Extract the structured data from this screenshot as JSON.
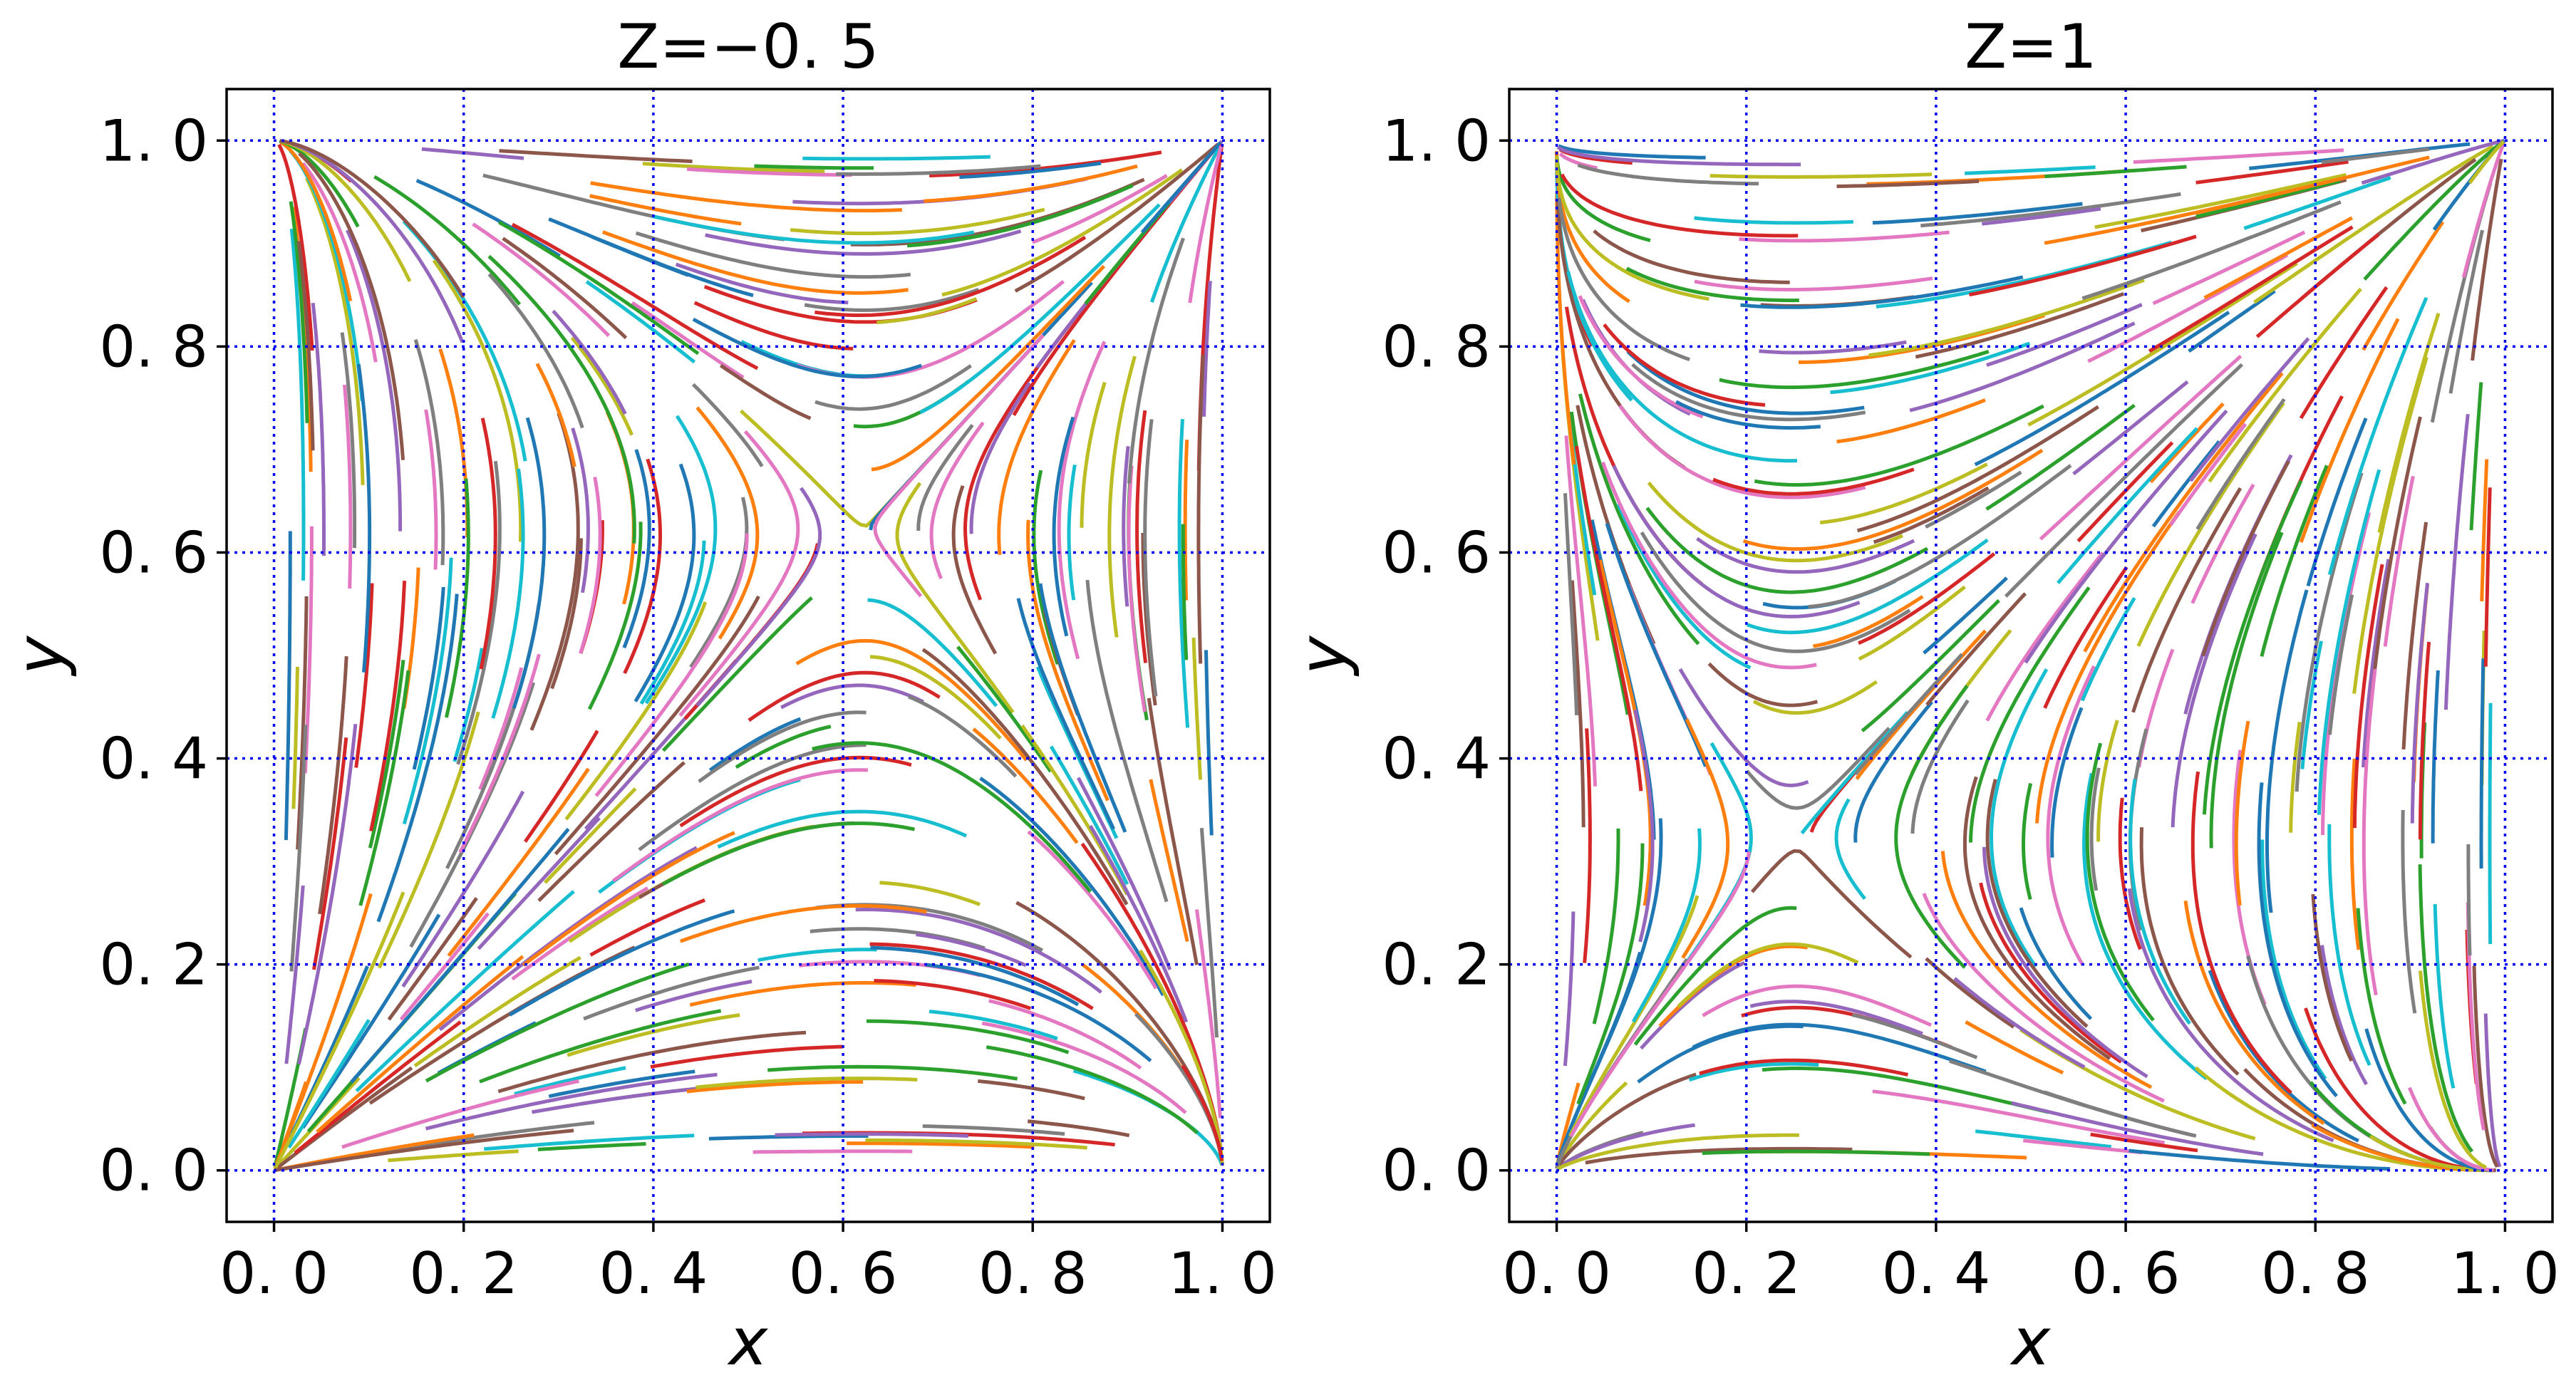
{
  "chart_data": [
    {
      "type": "streamplot",
      "title": "Z=−0. 5",
      "xlabel": "x",
      "ylabel": "y",
      "xlim": [
        -0.05,
        1.05
      ],
      "ylim": [
        -0.05,
        1.05
      ],
      "xticks": [
        0.0,
        0.2,
        0.4,
        0.6,
        0.8,
        1.0
      ],
      "yticks": [
        0.0,
        0.2,
        0.4,
        0.6,
        0.8,
        1.0
      ],
      "xtick_labels": [
        "0. 0",
        "0. 2",
        "0. 4",
        "0. 6",
        "0. 8",
        "1. 0"
      ],
      "ytick_labels": [
        "0. 0",
        "0. 2",
        "0. 4",
        "0. 6",
        "0. 8",
        "1. 0"
      ],
      "grid": true,
      "field": {
        "Z": -0.5,
        "fixed_point": [
          0.62,
          0.62
        ],
        "kind": "saddle"
      }
    },
    {
      "type": "streamplot",
      "title": "Z=1",
      "xlabel": "x",
      "ylabel": "y",
      "xlim": [
        -0.05,
        1.05
      ],
      "ylim": [
        -0.05,
        1.05
      ],
      "xticks": [
        0.0,
        0.2,
        0.4,
        0.6,
        0.8,
        1.0
      ],
      "yticks": [
        0.0,
        0.2,
        0.4,
        0.6,
        0.8,
        1.0
      ],
      "xtick_labels": [
        "0. 0",
        "0. 2",
        "0. 4",
        "0. 6",
        "0. 8",
        "1. 0"
      ],
      "ytick_labels": [
        "0. 0",
        "0. 2",
        "0. 4",
        "0. 6",
        "0. 8",
        "1. 0"
      ],
      "grid": true,
      "field": {
        "Z": 1,
        "fixed_point": [
          0.25,
          0.32
        ],
        "kind": "saddle"
      }
    }
  ],
  "colors": [
    "#1f77b4",
    "#ff7f0e",
    "#2ca02c",
    "#d62728",
    "#9467bd",
    "#8c564b",
    "#e377c2",
    "#7f7f7f",
    "#bcbd22",
    "#17becf"
  ]
}
